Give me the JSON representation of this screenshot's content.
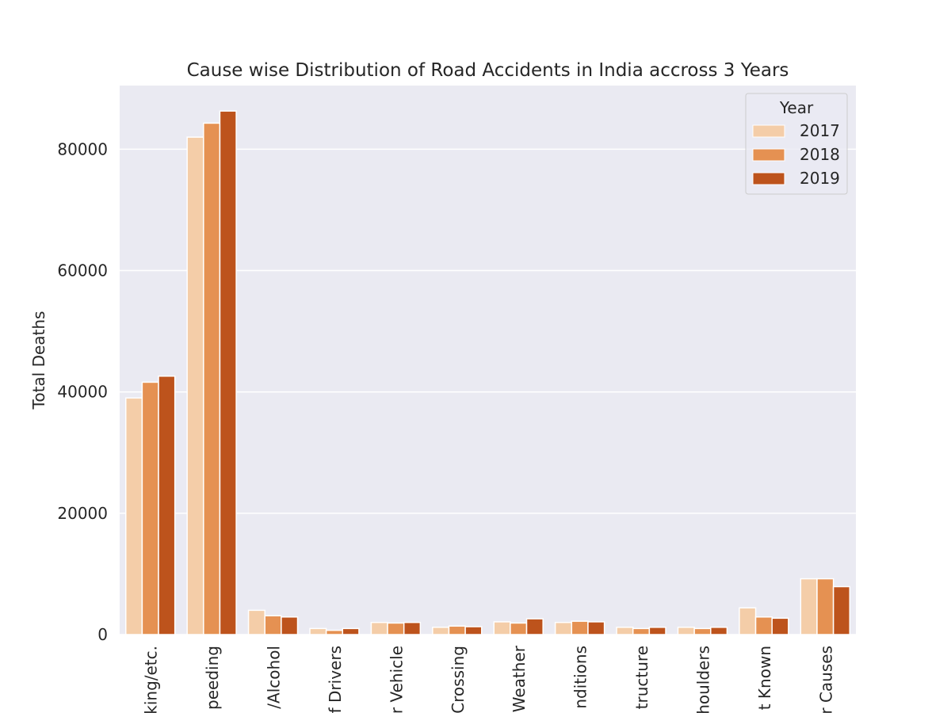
{
  "chart_data": {
    "type": "bar",
    "title": "Cause wise Distribution of Road Accidents in India accross 3 Years",
    "xlabel": "",
    "ylabel": "Total Deaths",
    "ylim": [
      0,
      90500
    ],
    "yticks": [
      0,
      20000,
      40000,
      60000,
      80000
    ],
    "grid": true,
    "legend_position": "top-right",
    "legend_title": "Year",
    "categories": [
      "king/etc.",
      "peeding",
      "/Alcohol",
      "f Drivers",
      "r Vehicle",
      "Crossing",
      "Weather",
      "nditions",
      "tructure",
      "houlders",
      "t Known",
      "r Causes"
    ],
    "series": [
      {
        "name": "2017",
        "color": "#f4cda8",
        "values": [
          39000,
          82000,
          4000,
          1000,
          2000,
          1200,
          2100,
          2000,
          1200,
          1200,
          4400,
          9200
        ]
      },
      {
        "name": "2018",
        "color": "#e59152",
        "values": [
          41600,
          84300,
          3100,
          700,
          1900,
          1400,
          1900,
          2200,
          1000,
          1000,
          2900,
          9200
        ]
      },
      {
        "name": "2019",
        "color": "#bd531c",
        "values": [
          42600,
          86300,
          2900,
          1000,
          2000,
          1300,
          2600,
          2100,
          1200,
          1200,
          2700,
          7900
        ]
      }
    ]
  }
}
